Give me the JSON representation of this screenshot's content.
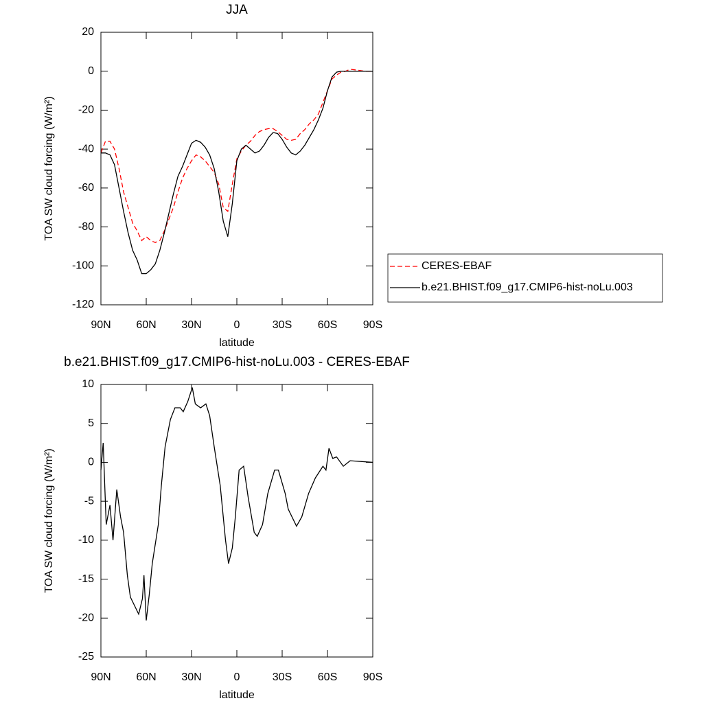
{
  "chart_data": [
    {
      "type": "line",
      "title": "JJA",
      "xlabel": "latitude",
      "ylabel": "TOA SW cloud forcing (W/m²)",
      "x": [
        90,
        87,
        84,
        81,
        78,
        75,
        72,
        69,
        66,
        63,
        60,
        57,
        54,
        51,
        48,
        45,
        42,
        39,
        36,
        33,
        30,
        27,
        24,
        21,
        18,
        15,
        12,
        9,
        6,
        3,
        0,
        -3,
        -6,
        -9,
        -12,
        -15,
        -18,
        -21,
        -24,
        -27,
        -30,
        -33,
        -36,
        -39,
        -42,
        -45,
        -48,
        -51,
        -54,
        -57,
        -60,
        -63,
        -66,
        -69,
        -72,
        -75,
        -80,
        -85,
        -90
      ],
      "series": [
        {
          "name": "CERES-EBAF",
          "color": "#ff0000",
          "dash": true,
          "values": [
            -42,
            -36,
            -36,
            -40,
            -50,
            -62,
            -70,
            -78,
            -82,
            -87,
            -85,
            -87,
            -88,
            -87,
            -82,
            -76,
            -70,
            -62,
            -55,
            -50,
            -46,
            -43,
            -44,
            -46,
            -49,
            -52,
            -58,
            -70,
            -72,
            -58,
            -45,
            -41,
            -38,
            -36,
            -33,
            -31,
            -30,
            -29.5,
            -29.5,
            -31,
            -33,
            -35,
            -35.5,
            -35,
            -32,
            -30,
            -27,
            -25,
            -22,
            -16,
            -10,
            -4,
            -2,
            -0.5,
            0,
            1,
            0.5,
            0,
            0
          ]
        },
        {
          "name": "b.e21.BHIST.f09_g17.CMIP6-hist-noLu.003",
          "color": "#000000",
          "dash": false,
          "values": [
            -42,
            -42,
            -43,
            -48,
            -60,
            -72,
            -83,
            -92,
            -97,
            -104,
            -104,
            -102,
            -99,
            -92,
            -83,
            -73,
            -63,
            -54,
            -49,
            -43,
            -37,
            -35.5,
            -36.5,
            -39,
            -43,
            -50,
            -62,
            -77,
            -85,
            -68,
            -46,
            -40,
            -38,
            -40,
            -42,
            -41,
            -38,
            -34,
            -31.5,
            -32,
            -35,
            -39,
            -42,
            -43,
            -41,
            -38,
            -34,
            -30,
            -25,
            -19,
            -10,
            -3,
            -0.5,
            0,
            0,
            0,
            0,
            0,
            0
          ]
        }
      ],
      "xlim": [
        90,
        -90
      ],
      "xticks": [
        {
          "value": 90,
          "label": "90N"
        },
        {
          "value": 60,
          "label": "60N"
        },
        {
          "value": 30,
          "label": "30N"
        },
        0,
        {
          "value": -30,
          "label": "30S"
        },
        {
          "value": -60,
          "label": "60S"
        },
        {
          "value": -90,
          "label": "90S"
        }
      ],
      "ylim": [
        -120,
        20
      ],
      "yticks": [
        20,
        0,
        -20,
        -40,
        -60,
        -80,
        -100,
        -120
      ],
      "legend": "right"
    },
    {
      "type": "line",
      "title": "b.e21.BHIST.f09_g17.CMIP6-hist-noLu.003 - CERES-EBAF",
      "xlabel": "latitude",
      "ylabel": "TOA SW cloud forcing (W/m²)",
      "x": [
        90,
        88.5,
        86.5,
        84,
        82,
        79.5,
        77,
        75,
        72.5,
        70.5,
        67.5,
        65,
        62.5,
        61.5,
        60,
        58,
        56,
        52,
        50,
        47.5,
        44,
        41,
        37.5,
        35.5,
        32.5,
        29.5,
        27.5,
        24,
        20.5,
        18,
        15,
        11,
        7.5,
        5.5,
        3,
        1,
        -1.5,
        -4.5,
        -7.5,
        -11.5,
        -13.5,
        -17,
        -20.5,
        -25,
        -27.5,
        -32,
        -34,
        -39.5,
        -43,
        -47.5,
        -52,
        -57,
        -59,
        -61,
        -63.5,
        -66,
        -70.5,
        -75,
        -90
      ],
      "color": "#000000",
      "values": [
        -1,
        2.5,
        -8,
        -5.5,
        -10,
        -3.5,
        -7,
        -9,
        -14.5,
        -17.3,
        -18.5,
        -19.5,
        -17.5,
        -14.5,
        -20.3,
        -17,
        -13,
        -8,
        -3,
        2,
        5.5,
        7,
        7,
        6.5,
        7.8,
        9.6,
        7.5,
        7,
        7.5,
        6,
        2,
        -3,
        -10,
        -13,
        -11,
        -7,
        -1,
        -0.5,
        -4.5,
        -9,
        -9.5,
        -8,
        -4,
        -1,
        -1,
        -4,
        -6,
        -8.2,
        -7,
        -4,
        -2,
        -0.5,
        -1,
        1.8,
        0.5,
        0.7,
        -0.5,
        0.2,
        0
      ],
      "xlim": [
        90,
        -90
      ],
      "xticks": [
        {
          "value": 90,
          "label": "90N"
        },
        {
          "value": 60,
          "label": "60N"
        },
        {
          "value": 30,
          "label": "30N"
        },
        0,
        {
          "value": -30,
          "label": "30S"
        },
        {
          "value": -60,
          "label": "60S"
        },
        {
          "value": -90,
          "label": "90S"
        }
      ],
      "ylim": [
        -25,
        10
      ],
      "yticks": [
        10,
        5,
        0,
        -5,
        -10,
        -15,
        -20,
        -25
      ]
    }
  ]
}
